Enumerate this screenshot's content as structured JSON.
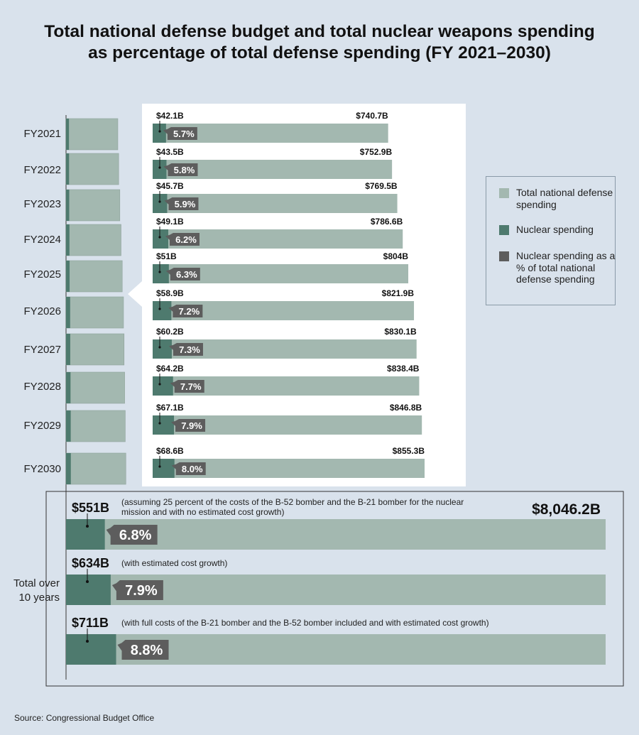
{
  "title_line1": "Total national defense budget and total nuclear weapons spending",
  "title_line2": "as percentage of total defense spending (FY 2021–2030)",
  "colors": {
    "background": "#d9e2ec",
    "total": "#a3b8b0",
    "nuclear": "#4e7a6e",
    "percent": "#5d5d5d"
  },
  "legend": {
    "total": "Total national defense spending",
    "nuclear": "Nuclear spending",
    "percent": "Nuclear spending as a % of total national defense spending"
  },
  "totals": {
    "label": "Total over 10 years",
    "total_value": 8046.2,
    "total_label": "$8,046.2B"
  },
  "source": "Source: Congressional Budget Office",
  "chart_data": [
    {
      "type": "bar",
      "orientation": "horizontal",
      "categories": [
        "FY2021",
        "FY2022",
        "FY2023",
        "FY2024",
        "FY2025",
        "FY2026",
        "FY2027",
        "FY2028",
        "FY2029",
        "FY2030"
      ],
      "series": [
        {
          "name": "Total national defense spending",
          "values": [
            740.7,
            752.9,
            769.5,
            786.6,
            804,
            821.9,
            830.1,
            838.4,
            846.8,
            855.3
          ],
          "labels": [
            "$740.7B",
            "$752.9B",
            "$769.5B",
            "$786.6B",
            "$804B",
            "$821.9B",
            "$830.1B",
            "$838.4B",
            "$846.8B",
            "$855.3B"
          ]
        },
        {
          "name": "Nuclear spending",
          "values": [
            42.1,
            43.5,
            45.7,
            49.1,
            51,
            58.9,
            60.2,
            64.2,
            67.1,
            68.6
          ],
          "labels": [
            "$42.1B",
            "$43.5B",
            "$45.7B",
            "$49.1B",
            "$51B",
            "$58.9B",
            "$60.2B",
            "$64.2B",
            "$67.1B",
            "$68.6B"
          ]
        },
        {
          "name": "Nuclear spending as a % of total national defense spending",
          "values": [
            5.7,
            5.8,
            5.9,
            6.2,
            6.3,
            7.2,
            7.3,
            7.7,
            7.9,
            8.0
          ],
          "labels": [
            "5.7%",
            "5.8%",
            "5.9%",
            "6.2%",
            "6.3%",
            "7.2%",
            "7.3%",
            "7.7%",
            "7.9%",
            "8.0%"
          ]
        }
      ]
    },
    {
      "type": "bar",
      "orientation": "horizontal",
      "scenarios": [
        {
          "nuclear": 551,
          "nuclear_label": "$551B",
          "percent": 6.8,
          "percent_label": "6.8%",
          "note": "(assuming 25 percent of the costs of the B-52 bomber and the B-21 bomber for the nuclear mission and with no estimated cost growth)"
        },
        {
          "nuclear": 634,
          "nuclear_label": "$634B",
          "percent": 7.9,
          "percent_label": "7.9%",
          "note": "(with estimated cost growth)"
        },
        {
          "nuclear": 711,
          "nuclear_label": "$711B",
          "percent": 8.8,
          "percent_label": "8.8%",
          "note": "(with full costs of the B-21 bomber and the B-52 bomber included and with estimated cost growth)"
        }
      ],
      "total": 8046.2
    }
  ]
}
